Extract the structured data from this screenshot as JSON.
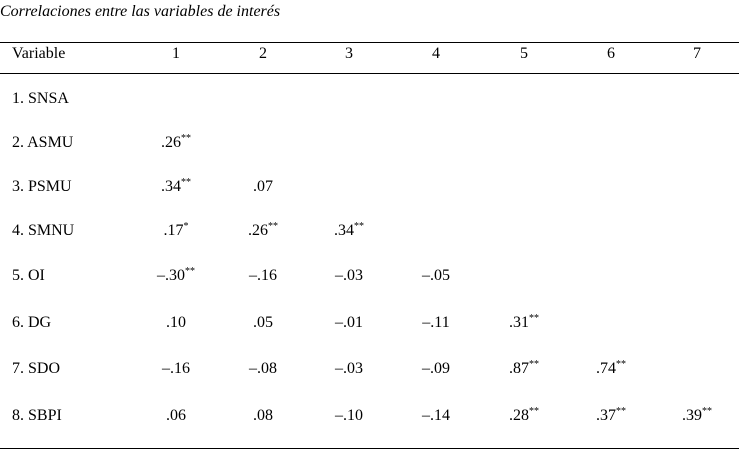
{
  "title": "Correlaciones entre las variables de interés",
  "table": {
    "header": [
      "Variable",
      "1",
      "2",
      "3",
      "4",
      "5",
      "6",
      "7"
    ],
    "rows": [
      {
        "label": "1. SNSA",
        "cells": []
      },
      {
        "label": "2. ASMU",
        "cells": [
          {
            "text": ".26",
            "sig": "**"
          }
        ]
      },
      {
        "label": "3. PSMU",
        "cells": [
          {
            "text": ".34",
            "sig": "**"
          },
          {
            "text": ".07"
          }
        ]
      },
      {
        "label": "4. SMNU",
        "cells": [
          {
            "text": ".17",
            "sig": "*"
          },
          {
            "text": ".26",
            "sig": "**"
          },
          {
            "text": ".34",
            "sig": "**"
          }
        ]
      },
      {
        "label": "5. OI",
        "cells": [
          {
            "text": "–.30",
            "sig": "**"
          },
          {
            "text": "–.16"
          },
          {
            "text": "–.03"
          },
          {
            "text": "–.05"
          }
        ]
      },
      {
        "label": "6. DG",
        "cells": [
          {
            "text": ".10"
          },
          {
            "text": ".05"
          },
          {
            "text": "–.01"
          },
          {
            "text": "–.11"
          },
          {
            "text": ".31",
            "sig": "**"
          }
        ]
      },
      {
        "label": "7. SDO",
        "cells": [
          {
            "text": "–.16"
          },
          {
            "text": "–.08"
          },
          {
            "text": "–.03"
          },
          {
            "text": "–.09"
          },
          {
            "text": ".87",
            "sig": "**"
          },
          {
            "text": ".74",
            "sig": "**"
          }
        ]
      },
      {
        "label": "8. SBPI",
        "cells": [
          {
            "text": ".06"
          },
          {
            "text": ".08"
          },
          {
            "text": "–.10"
          },
          {
            "text": "–.14"
          },
          {
            "text": ".28",
            "sig": "**"
          },
          {
            "text": ".37",
            "sig": "**"
          },
          {
            "text": ".39",
            "sig": "**"
          }
        ]
      }
    ]
  }
}
